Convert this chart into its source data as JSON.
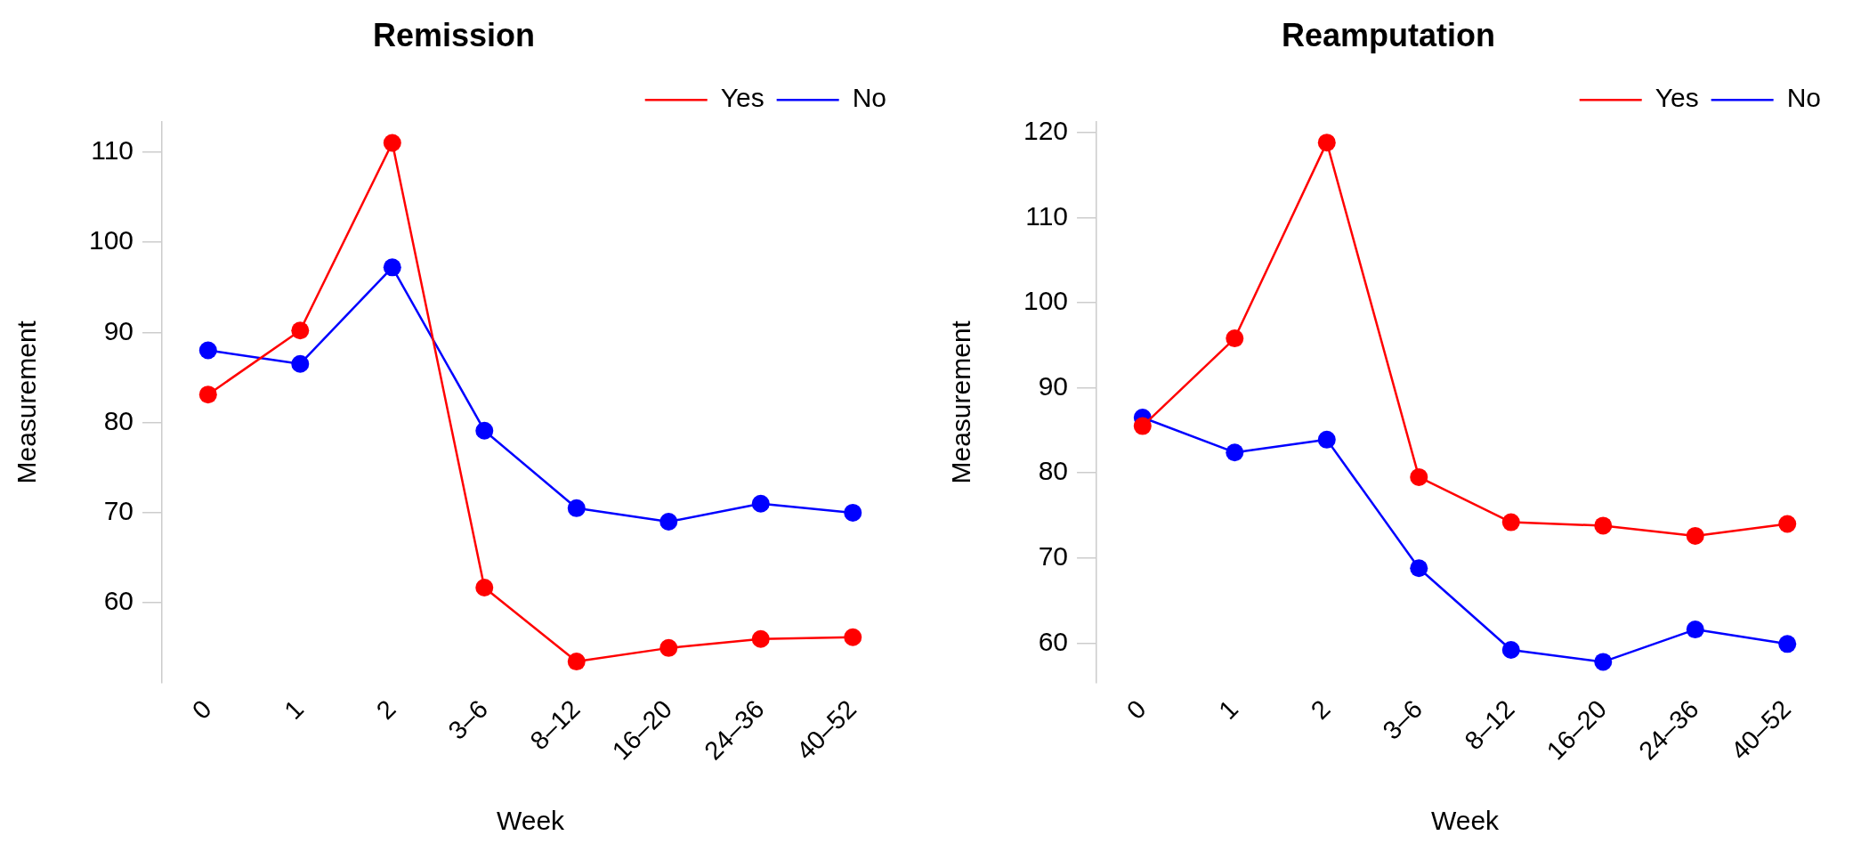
{
  "chart_data": [
    {
      "type": "line",
      "title": "Remission",
      "xlabel": "Week",
      "ylabel": "Measurement",
      "categories": [
        "0",
        "1",
        "2",
        "3–6",
        "8–12",
        "16–20",
        "24–36",
        "40–52"
      ],
      "ylim": [
        51.2,
        113.3
      ],
      "series": [
        {
          "name": "Yes",
          "color": "#ff0000",
          "values": [
            83.1,
            90.2,
            111.0,
            61.7,
            53.5,
            55.0,
            56.0,
            56.2
          ]
        },
        {
          "name": "No",
          "color": "#0000ff",
          "values": [
            88.0,
            86.5,
            97.2,
            79.1,
            70.5,
            69.0,
            71.0,
            70.0
          ]
        }
      ],
      "yticks": [
        60,
        70,
        80,
        90,
        100,
        110
      ],
      "grid": false,
      "legend": "top right",
      "marker": "circle"
    },
    {
      "type": "line",
      "title": "Reamputation",
      "xlabel": "Week",
      "ylabel": "Measurement",
      "categories": [
        "0",
        "1",
        "2",
        "3–6",
        "8–12",
        "16–20",
        "24–36",
        "40–52"
      ],
      "ylim": [
        55.4,
        121.2
      ],
      "series": [
        {
          "name": "Yes",
          "color": "#ff0000",
          "values": [
            85.5,
            95.8,
            118.8,
            79.5,
            74.2,
            73.8,
            72.6,
            74.0
          ]
        },
        {
          "name": "No",
          "color": "#0000ff",
          "values": [
            86.5,
            82.4,
            83.9,
            68.8,
            59.2,
            57.8,
            61.6,
            59.9
          ]
        }
      ],
      "yticks": [
        60,
        70,
        80,
        90,
        100,
        110,
        120
      ],
      "grid": false,
      "legend": "top right",
      "marker": "circle"
    }
  ]
}
